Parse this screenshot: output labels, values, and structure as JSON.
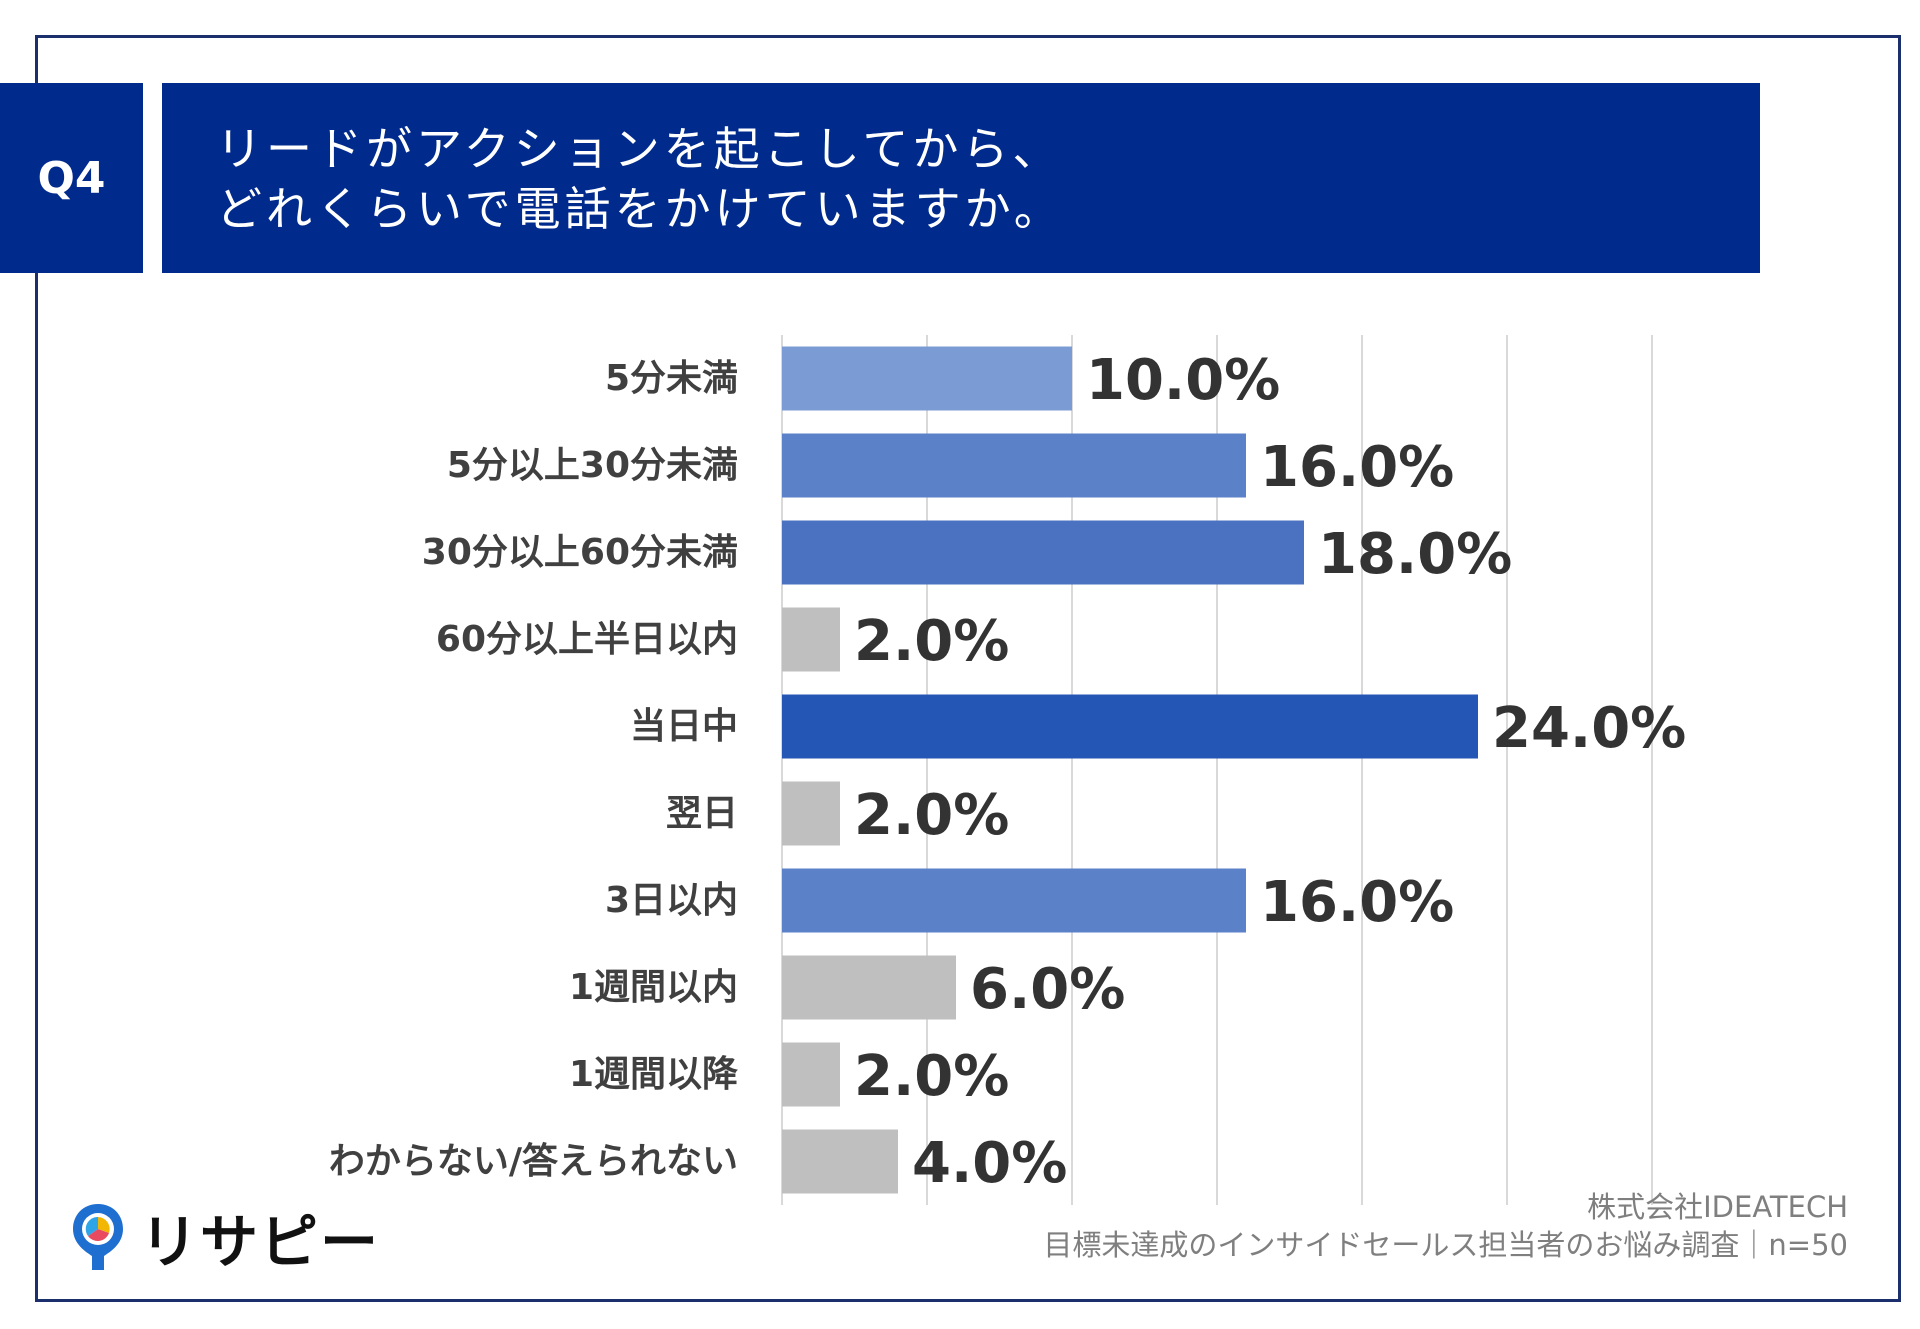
{
  "header": {
    "question_no": "Q4",
    "title_line1": "リードがアクションを起こしてから、",
    "title_line2": "どれくらいで電話をかけていますか。"
  },
  "chart_data": {
    "type": "bar",
    "orientation": "horizontal",
    "categories": [
      "5分未満",
      "5分以上30分未満",
      "30分以上60分未満",
      "60分以上半日以内",
      "当日中",
      "翌日",
      "3日以内",
      "1週間以内",
      "1週間以降",
      "わからない/答えられない"
    ],
    "values": [
      10.0,
      16.0,
      18.0,
      2.0,
      24.0,
      2.0,
      16.0,
      6.0,
      2.0,
      4.0
    ],
    "value_labels": [
      "10.0%",
      "16.0%",
      "18.0%",
      "2.0%",
      "24.0%",
      "2.0%",
      "16.0%",
      "6.0%",
      "2.0%",
      "4.0%"
    ],
    "bar_colors": [
      "#7b9bd4",
      "#5b82c9",
      "#4a72c0",
      "#bfbfbf",
      "#2456b5",
      "#bfbfbf",
      "#5b82c9",
      "#bfbfbf",
      "#bfbfbf",
      "#bfbfbf"
    ],
    "xlim": [
      0,
      30
    ],
    "grid": true,
    "unit": "%"
  },
  "footer": {
    "company": "株式会社IDEATECH",
    "survey": "目標未達成のインサイドセールス担当者のお悩み調査｜n=50"
  },
  "logo": {
    "text": "リサピー",
    "icon": "pin-logo-icon"
  },
  "colors": {
    "header_bg": "#002a8c",
    "frame": "#1a2f6b"
  }
}
